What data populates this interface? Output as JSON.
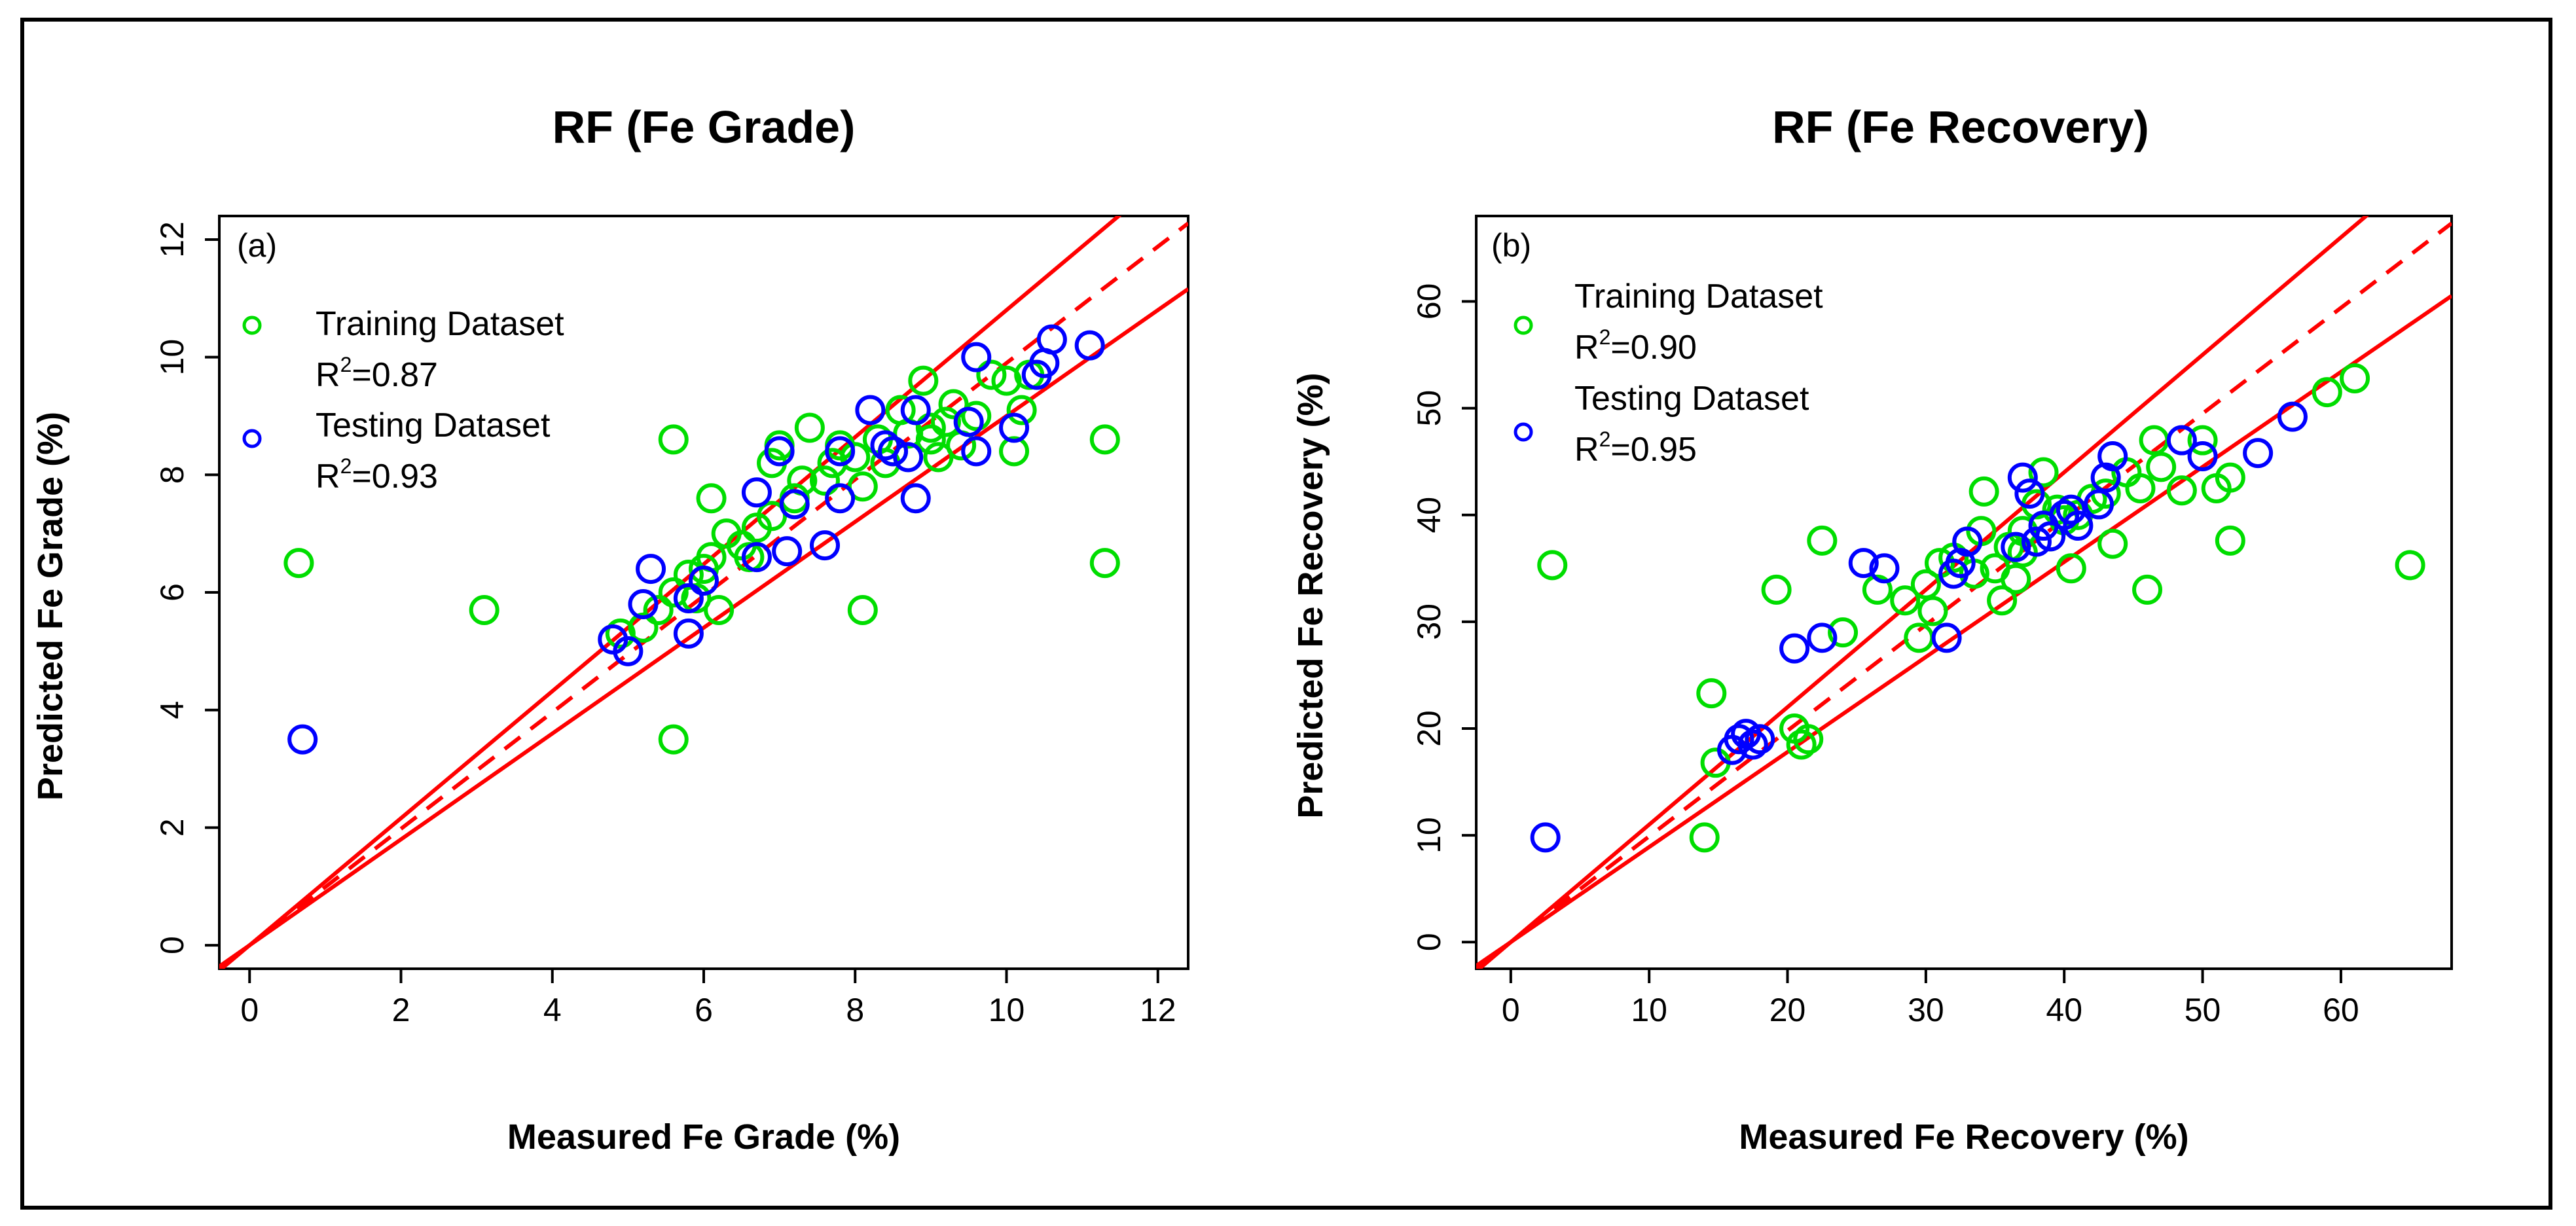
{
  "chart_data": [
    {
      "type": "scatter",
      "panel": "(a)",
      "title": "RF (Fe Grade)",
      "xlabel": "Measured Fe Grade (%)",
      "ylabel": "Predicted Fe Grade (%)",
      "xlim": [
        -0.4,
        12.4
      ],
      "ylim": [
        -0.4,
        12.4
      ],
      "xticks": [
        "0",
        "2",
        "4",
        "6",
        "8",
        "10",
        "12"
      ],
      "yticks": [
        "0",
        "2",
        "4",
        "6",
        "8",
        "10",
        "12"
      ],
      "grid": false,
      "legend_position": "top-left",
      "lines": [
        {
          "name": "upper bound",
          "style": "solid",
          "color": "#ff0000",
          "slope": 1.08
        },
        {
          "name": "fit",
          "style": "dashed",
          "color": "#ff0000",
          "slope": 0.99
        },
        {
          "name": "lower bound",
          "style": "solid",
          "color": "#ff0000",
          "slope": 0.9
        }
      ],
      "series": [
        {
          "name": "Training Dataset",
          "r2": "R2=0.87",
          "r2_base": "R",
          "r2_sup": "2",
          "r2_value": "=0.87",
          "color": "#00dd00",
          "marker": "o",
          "points": [
            [
              0.65,
              6.5
            ],
            [
              3.1,
              5.7
            ],
            [
              5.6,
              8.6
            ],
            [
              5.6,
              3.5
            ],
            [
              11.3,
              8.6
            ],
            [
              11.3,
              6.5
            ],
            [
              8.1,
              5.7
            ],
            [
              4.9,
              5.3
            ],
            [
              5.2,
              5.4
            ],
            [
              5.4,
              5.7
            ],
            [
              5.6,
              6.0
            ],
            [
              5.8,
              6.3
            ],
            [
              6.0,
              6.4
            ],
            [
              6.1,
              6.6
            ],
            [
              6.3,
              7.0
            ],
            [
              6.2,
              5.7
            ],
            [
              6.5,
              6.8
            ],
            [
              6.7,
              7.1
            ],
            [
              6.9,
              7.3
            ],
            [
              6.1,
              7.6
            ],
            [
              6.9,
              8.2
            ],
            [
              7.0,
              8.5
            ],
            [
              7.2,
              7.6
            ],
            [
              7.4,
              8.8
            ],
            [
              7.6,
              7.9
            ],
            [
              7.8,
              8.5
            ],
            [
              8.0,
              8.3
            ],
            [
              8.1,
              7.8
            ],
            [
              8.3,
              8.6
            ],
            [
              8.5,
              8.4
            ],
            [
              8.7,
              8.7
            ],
            [
              8.9,
              9.6
            ],
            [
              9.0,
              8.8
            ],
            [
              9.1,
              8.3
            ],
            [
              9.2,
              8.9
            ],
            [
              9.4,
              8.5
            ],
            [
              9.6,
              9.0
            ],
            [
              9.8,
              9.7
            ],
            [
              10.0,
              9.6
            ],
            [
              10.1,
              8.4
            ],
            [
              10.2,
              9.1
            ],
            [
              10.3,
              9.7
            ],
            [
              9.0,
              8.6
            ],
            [
              8.6,
              9.1
            ],
            [
              7.3,
              7.9
            ],
            [
              6.6,
              6.6
            ],
            [
              5.9,
              5.9
            ],
            [
              7.7,
              8.2
            ],
            [
              8.4,
              8.2
            ],
            [
              9.3,
              9.2
            ]
          ]
        },
        {
          "name": "Testing Dataset",
          "r2": "R2=0.93",
          "r2_base": "R",
          "r2_sup": "2",
          "r2_value": "=0.93",
          "color": "#0000ff",
          "marker": "o",
          "points": [
            [
              0.7,
              3.5
            ],
            [
              4.8,
              5.2
            ],
            [
              5.0,
              5.0
            ],
            [
              5.2,
              5.8
            ],
            [
              5.3,
              6.4
            ],
            [
              5.8,
              5.9
            ],
            [
              5.8,
              5.3
            ],
            [
              6.0,
              6.2
            ],
            [
              6.7,
              7.7
            ],
            [
              6.7,
              6.6
            ],
            [
              7.0,
              8.4
            ],
            [
              7.1,
              6.7
            ],
            [
              7.2,
              7.5
            ],
            [
              7.6,
              6.8
            ],
            [
              7.8,
              7.6
            ],
            [
              7.8,
              8.4
            ],
            [
              8.2,
              9.1
            ],
            [
              8.4,
              8.5
            ],
            [
              8.5,
              8.4
            ],
            [
              8.7,
              8.3
            ],
            [
              8.8,
              7.6
            ],
            [
              8.8,
              9.1
            ],
            [
              9.6,
              10.0
            ],
            [
              9.6,
              8.4
            ],
            [
              10.1,
              8.8
            ],
            [
              10.4,
              9.7
            ],
            [
              10.5,
              9.9
            ],
            [
              10.6,
              10.3
            ],
            [
              11.1,
              10.2
            ],
            [
              9.5,
              8.9
            ]
          ]
        }
      ]
    },
    {
      "type": "scatter",
      "panel": "(b)",
      "title": "RF (Fe Recovery)",
      "xlabel": "Measured Fe Recovery (%)",
      "ylabel": "Predicted Fe Recovery (%)",
      "xlim": [
        -2.5,
        68
      ],
      "ylim": [
        -2.5,
        68
      ],
      "xticks": [
        "0",
        "10",
        "20",
        "30",
        "40",
        "50",
        "60"
      ],
      "yticks": [
        "0",
        "10",
        "20",
        "30",
        "40",
        "50",
        "60"
      ],
      "grid": false,
      "legend_position": "top-left",
      "lines": [
        {
          "name": "upper bound",
          "style": "solid",
          "color": "#ff0000",
          "slope": 1.1
        },
        {
          "name": "fit",
          "style": "dashed",
          "color": "#ff0000",
          "slope": 0.99
        },
        {
          "name": "lower bound",
          "style": "solid",
          "color": "#ff0000",
          "slope": 0.89
        }
      ],
      "series": [
        {
          "name": "Training Dataset",
          "r2": "R2=0.90",
          "r2_base": "R",
          "r2_sup": "2",
          "r2_value": "=0.90",
          "color": "#00dd00",
          "marker": "o",
          "points": [
            [
              3.0,
              35.3
            ],
            [
              14.0,
              9.8
            ],
            [
              14.5,
              23.3
            ],
            [
              14.8,
              16.8
            ],
            [
              19.2,
              33.0
            ],
            [
              20.5,
              20.0
            ],
            [
              21.0,
              18.5
            ],
            [
              21.5,
              19.0
            ],
            [
              22.5,
              37.6
            ],
            [
              26.5,
              33.0
            ],
            [
              28.5,
              32.0
            ],
            [
              29.5,
              28.5
            ],
            [
              30.0,
              33.5
            ],
            [
              31.0,
              35.5
            ],
            [
              32.0,
              36.0
            ],
            [
              33.0,
              37.5
            ],
            [
              34.0,
              38.5
            ],
            [
              34.2,
              42.2
            ],
            [
              35.0,
              35.0
            ],
            [
              35.5,
              32.0
            ],
            [
              36.0,
              37.0
            ],
            [
              37.0,
              36.5
            ],
            [
              38.0,
              41.0
            ],
            [
              38.5,
              44.0
            ],
            [
              39.0,
              38.0
            ],
            [
              40.0,
              39.5
            ],
            [
              40.5,
              35.0
            ],
            [
              41.0,
              40.0
            ],
            [
              42.0,
              41.5
            ],
            [
              43.0,
              42.0
            ],
            [
              43.5,
              37.3
            ],
            [
              44.5,
              44.0
            ],
            [
              45.5,
              42.5
            ],
            [
              46.0,
              33.0
            ],
            [
              46.5,
              47.0
            ],
            [
              47.0,
              44.5
            ],
            [
              48.5,
              42.3
            ],
            [
              50.0,
              47.0
            ],
            [
              51.0,
              42.5
            ],
            [
              52.0,
              37.6
            ],
            [
              52.0,
              43.5
            ],
            [
              59.0,
              51.5
            ],
            [
              61.0,
              52.8
            ],
            [
              65.0,
              35.3
            ],
            [
              30.5,
              31.0
            ],
            [
              24.0,
              29.0
            ],
            [
              37.0,
              38.5
            ],
            [
              39.5,
              40.5
            ],
            [
              36.5,
              34.0
            ],
            [
              33.5,
              34.5
            ]
          ]
        },
        {
          "name": "Testing Dataset",
          "r2": "R2=0.95",
          "r2_base": "R",
          "r2_sup": "2",
          "r2_value": "=0.95",
          "color": "#0000ff",
          "marker": "o",
          "points": [
            [
              2.5,
              9.8
            ],
            [
              16.0,
              18.0
            ],
            [
              16.5,
              19.0
            ],
            [
              17.0,
              19.5
            ],
            [
              17.5,
              18.5
            ],
            [
              18.0,
              19.0
            ],
            [
              20.5,
              27.5
            ],
            [
              22.5,
              28.5
            ],
            [
              25.5,
              35.5
            ],
            [
              27.0,
              35.0
            ],
            [
              31.5,
              28.5
            ],
            [
              32.0,
              34.5
            ],
            [
              33.0,
              37.5
            ],
            [
              36.5,
              37.0
            ],
            [
              37.0,
              43.5
            ],
            [
              37.5,
              42.0
            ],
            [
              38.0,
              37.5
            ],
            [
              38.5,
              39.0
            ],
            [
              39.0,
              38.0
            ],
            [
              40.0,
              40.0
            ],
            [
              40.5,
              40.5
            ],
            [
              41.0,
              39.0
            ],
            [
              42.5,
              41.0
            ],
            [
              43.0,
              43.5
            ],
            [
              43.5,
              45.5
            ],
            [
              48.5,
              47.0
            ],
            [
              50.0,
              45.5
            ],
            [
              54.0,
              45.8
            ],
            [
              56.5,
              49.2
            ],
            [
              32.5,
              35.5
            ]
          ]
        }
      ]
    }
  ]
}
